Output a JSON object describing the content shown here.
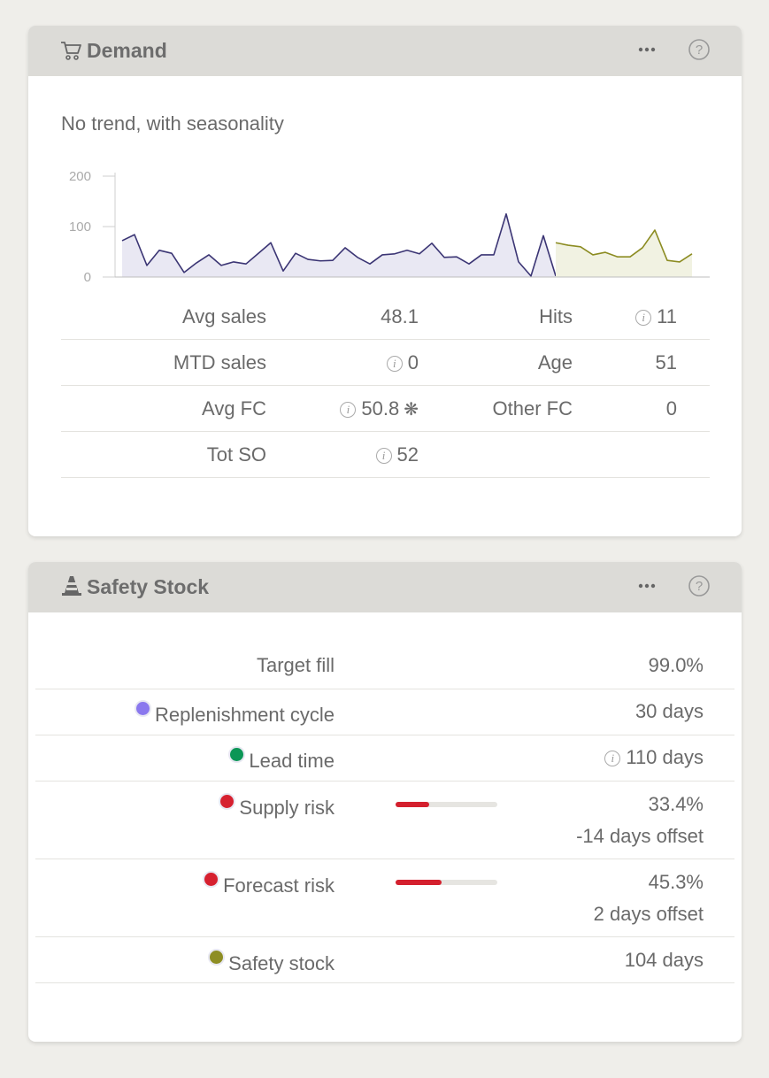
{
  "demand": {
    "title": "Demand",
    "subtitle": "No trend, with seasonality",
    "stats": {
      "rows": [
        {
          "label": "Avg sales",
          "value": 48.1,
          "label2": "Hits",
          "value2": 11
        },
        {
          "label": "MTD sales",
          "value": 0,
          "label2": "Age",
          "value2": 51
        },
        {
          "label": "Avg FC",
          "value": 50.8,
          "label2": "Other FC",
          "value2": 0
        },
        {
          "label": "Tot SO",
          "value": 52
        }
      ]
    }
  },
  "chart_data": {
    "type": "line",
    "ylim": [
      0,
      200
    ],
    "yticks": [
      0,
      100,
      200
    ],
    "grid": false,
    "series": [
      {
        "color": "#3b3574",
        "fill": "#e9e8f3",
        "values": [
          72,
          84,
          23,
          53,
          47,
          9,
          28,
          44,
          23,
          30,
          26,
          47,
          68,
          12,
          47,
          35,
          32,
          33,
          58,
          39,
          26,
          44,
          46,
          53,
          46,
          67,
          39,
          40,
          26,
          44,
          44,
          125,
          30,
          2,
          82,
          2,
          null,
          null,
          null,
          null,
          null,
          null,
          null,
          null,
          null,
          null,
          null
        ]
      },
      {
        "color": "#8c8c22",
        "fill": "#f1f2e2",
        "values": [
          null,
          null,
          null,
          null,
          null,
          null,
          null,
          null,
          null,
          null,
          null,
          null,
          null,
          null,
          null,
          null,
          null,
          null,
          null,
          null,
          null,
          null,
          null,
          null,
          null,
          null,
          null,
          null,
          null,
          null,
          null,
          null,
          null,
          null,
          null,
          68,
          63,
          60,
          44,
          49,
          40,
          40,
          58,
          93,
          33,
          30,
          46
        ]
      }
    ]
  },
  "safety": {
    "title": "Safety Stock",
    "rows": [
      {
        "label": "Target fill",
        "value": "99.0%"
      },
      {
        "label": "Replenishment cycle",
        "color": "#8a78ee",
        "value": "30 days"
      },
      {
        "label": "Lead time",
        "color": "#0c9656",
        "value": "110 days"
      },
      {
        "label": "Supply risk",
        "color": "#d6202f",
        "value": {
          "value": 33.4,
          "label": "33.4%"
        },
        "offset": "-14 days offset"
      },
      {
        "label": "Forecast risk",
        "color": "#d6202f",
        "value": {
          "value": 45.3,
          "label": "45.3%"
        },
        "offset": "2 days offset"
      },
      {
        "label": "Safety stock",
        "color": "#8e8e24",
        "value": "104 days"
      }
    ]
  }
}
